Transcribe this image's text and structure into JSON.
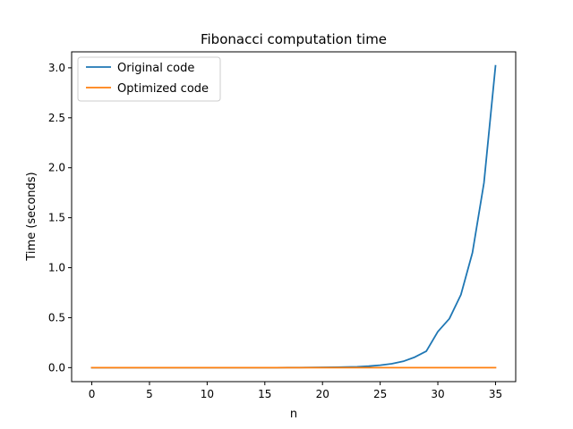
{
  "chart_data": {
    "type": "line",
    "title": "Fibonacci computation time",
    "xlabel": "n",
    "ylabel": "Time (seconds)",
    "xlim": [
      -1.75,
      36.75
    ],
    "ylim": [
      -0.14,
      3.16
    ],
    "xticks": [
      0,
      5,
      10,
      15,
      20,
      25,
      30,
      35
    ],
    "yticks": [
      0.0,
      0.5,
      1.0,
      1.5,
      2.0,
      2.5,
      3.0
    ],
    "ytick_labels": [
      "0.0",
      "0.5",
      "1.0",
      "1.5",
      "2.0",
      "2.5",
      "3.0"
    ],
    "grid": false,
    "legend": "top-left",
    "x": [
      0,
      1,
      2,
      3,
      4,
      5,
      6,
      7,
      8,
      9,
      10,
      11,
      12,
      13,
      14,
      15,
      16,
      17,
      18,
      19,
      20,
      21,
      22,
      23,
      24,
      25,
      26,
      27,
      28,
      29,
      30,
      31,
      32,
      33,
      34,
      35
    ],
    "series": [
      {
        "name": "Original code",
        "color": "#1f77b4",
        "values": [
          0,
          0,
          0,
          0,
          0,
          0,
          0,
          0,
          0,
          0,
          0,
          0,
          0,
          0,
          0,
          0,
          0,
          0.001,
          0.001,
          0.002,
          0.003,
          0.004,
          0.006,
          0.009,
          0.015,
          0.024,
          0.039,
          0.063,
          0.105,
          0.165,
          0.36,
          0.49,
          0.73,
          1.15,
          1.85,
          3.02
        ]
      },
      {
        "name": "Optimized code",
        "color": "#ff7f0e",
        "values": [
          0,
          0,
          0,
          0,
          0,
          0,
          0,
          0,
          0,
          0,
          0,
          0,
          0,
          0,
          0,
          0,
          0,
          0,
          0,
          0,
          0,
          0,
          0,
          0,
          0,
          0,
          0,
          0,
          0,
          0,
          0,
          0,
          0,
          0,
          0,
          0
        ]
      }
    ]
  }
}
